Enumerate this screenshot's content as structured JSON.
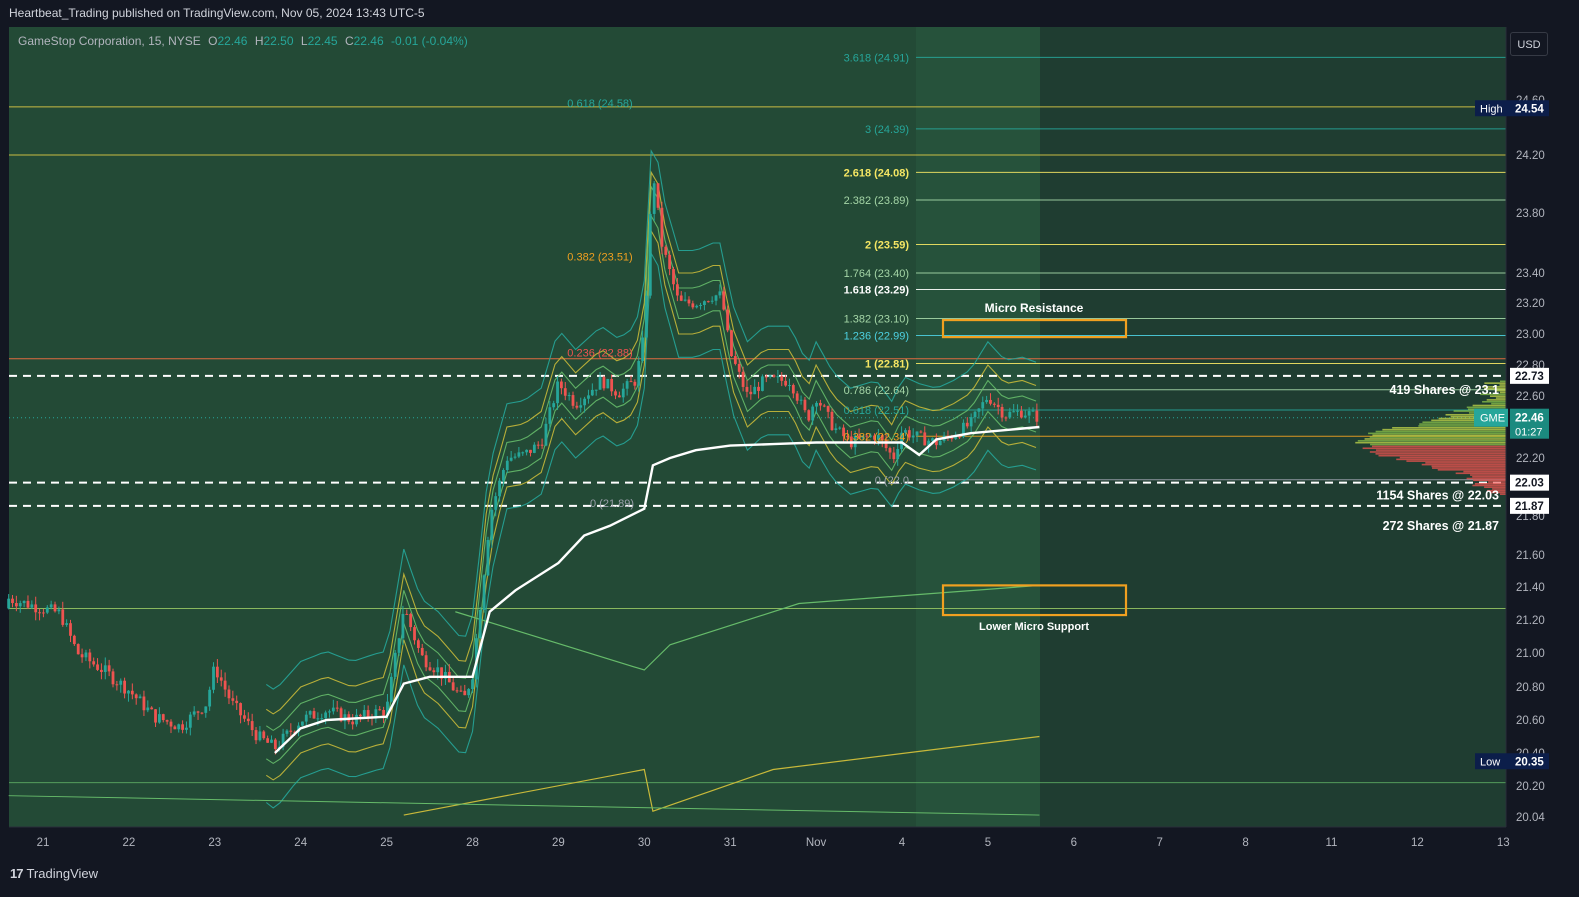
{
  "header": {
    "publish_line": "Heartbeat_Trading published on TradingView.com, Nov 05, 2024 13:43 UTC-5"
  },
  "symbol_legend": {
    "name": "GameStop Corporation, 15, NYSE",
    "o_label": "O",
    "o_value": "22.46",
    "h_label": "H",
    "h_value": "22.50",
    "l_label": "L",
    "l_value": "22.45",
    "c_label": "C",
    "c_value": "22.46",
    "change": "-0.01 (-0.04%)"
  },
  "currency_button": "USD",
  "footer": {
    "brand": "TradingView",
    "brand_mark": "17"
  },
  "colors": {
    "bg": "#131722",
    "panel_green": "#234a36",
    "future_zone": "#1f3d31",
    "up": "#26a69a",
    "down": "#ef5350",
    "yellow": "#e6d046",
    "orange": "#f0a020",
    "white": "#ffffff"
  },
  "chart_data": {
    "type": "candlestick",
    "symbol": "GME",
    "interval": "15",
    "ylim": [
      20.0,
      24.7
    ],
    "y_ticks": [
      "24.60",
      "24.20",
      "23.80",
      "23.40",
      "23.20",
      "23.00",
      "22.80",
      "22.60",
      "22.20",
      "21.80",
      "21.60",
      "21.40",
      "21.20",
      "21.00",
      "20.80",
      "20.60",
      "20.40",
      "20.20",
      "20.04"
    ],
    "x_ticks": [
      "21",
      "22",
      "23",
      "24",
      "25",
      "28",
      "29",
      "30",
      "31",
      "Nov",
      "4",
      "5",
      "6",
      "7",
      "8",
      "11",
      "12",
      "13"
    ],
    "close_path": [
      [
        0,
        21.27
      ],
      [
        0.2,
        21.24
      ],
      [
        0.4,
        21.0
      ],
      [
        0.7,
        20.9
      ],
      [
        1.0,
        20.78
      ],
      [
        1.3,
        20.62
      ],
      [
        1.6,
        20.56
      ],
      [
        1.9,
        20.7
      ],
      [
        2.0,
        20.92
      ],
      [
        2.2,
        20.7
      ],
      [
        2.5,
        20.5
      ],
      [
        2.7,
        20.43
      ],
      [
        3.0,
        20.6
      ],
      [
        3.3,
        20.66
      ],
      [
        3.6,
        20.6
      ],
      [
        3.9,
        20.65
      ],
      [
        4.0,
        20.66
      ],
      [
        4.2,
        21.28
      ],
      [
        4.4,
        20.98
      ],
      [
        4.6,
        20.9
      ],
      [
        4.9,
        20.72
      ],
      [
        5.0,
        20.88
      ],
      [
        5.2,
        21.8
      ],
      [
        5.4,
        22.2
      ],
      [
        5.6,
        22.22
      ],
      [
        5.8,
        22.3
      ],
      [
        6.0,
        22.68
      ],
      [
        6.2,
        22.55
      ],
      [
        6.5,
        22.7
      ],
      [
        6.7,
        22.62
      ],
      [
        6.9,
        22.7
      ],
      [
        7.0,
        23.0
      ],
      [
        7.1,
        24.1
      ],
      [
        7.2,
        23.6
      ],
      [
        7.4,
        23.2
      ],
      [
        7.6,
        23.2
      ],
      [
        7.8,
        23.25
      ],
      [
        7.9,
        23.25
      ],
      [
        8.0,
        22.88
      ],
      [
        8.2,
        22.6
      ],
      [
        8.4,
        22.7
      ],
      [
        8.7,
        22.7
      ],
      [
        8.9,
        22.45
      ],
      [
        9.0,
        22.6
      ],
      [
        9.2,
        22.4
      ],
      [
        9.4,
        22.3
      ],
      [
        9.7,
        22.35
      ],
      [
        9.9,
        22.2
      ],
      [
        10.0,
        22.38
      ],
      [
        10.2,
        22.33
      ],
      [
        10.4,
        22.3
      ],
      [
        10.6,
        22.35
      ],
      [
        10.8,
        22.42
      ],
      [
        11.0,
        22.6
      ],
      [
        11.2,
        22.48
      ],
      [
        11.4,
        22.5
      ],
      [
        11.6,
        22.46
      ]
    ],
    "series": [
      {
        "name": "VWAP (anchored)",
        "color": "#ffffff"
      },
      {
        "name": "Volume profile",
        "color": "#ef5350"
      }
    ],
    "horizontal_levels": [
      {
        "value": 24.54,
        "label": "High"
      },
      {
        "value": 20.35,
        "label": "Low"
      },
      {
        "value": 22.73,
        "label": "22.73",
        "style": "dashed"
      },
      {
        "value": 22.03,
        "label": "22.03",
        "style": "dashed"
      },
      {
        "value": 21.87,
        "label": "21.87",
        "style": "dashed"
      }
    ],
    "price_tags": [
      {
        "text": "High",
        "value": "24.54",
        "kind": "navy"
      },
      {
        "text": "Low",
        "value": "20.35",
        "kind": "navy"
      },
      {
        "text": "GME",
        "value": "22.46",
        "sub": "01:27",
        "kind": "teal"
      },
      {
        "text": "",
        "value": "22.73",
        "kind": "white"
      },
      {
        "text": "",
        "value": "22.03",
        "kind": "white"
      },
      {
        "text": "",
        "value": "21.87",
        "kind": "white"
      }
    ],
    "fib_left": [
      {
        "label": "0.618 (24.58)",
        "value": 24.58,
        "color": "#26a69a"
      },
      {
        "label": "0.382 (23.51)",
        "value": 23.51,
        "color": "#f0a020"
      },
      {
        "label": "0.236 (22.88)",
        "value": 22.88,
        "color": "#ef5350"
      },
      {
        "label": "0 (21.89)",
        "value": 21.89,
        "color": "#9ba0ab"
      }
    ],
    "fib_right": [
      {
        "label": "3.618 (24.91)",
        "value": 24.91,
        "color": "#26a69a"
      },
      {
        "label": "3 (24.39)",
        "value": 24.39,
        "color": "#26a69a"
      },
      {
        "label": "2.618 (24.08)",
        "value": 24.08,
        "color": "#f5e663"
      },
      {
        "label": "2.382 (23.89)",
        "value": 23.89,
        "color": "#a5d6a7"
      },
      {
        "label": "2 (23.59)",
        "value": 23.59,
        "color": "#f5e663"
      },
      {
        "label": "1.764 (23.40)",
        "value": 23.4,
        "color": "#a5d6a7"
      },
      {
        "label": "1.618 (23.29)",
        "value": 23.29,
        "color": "#ffffff"
      },
      {
        "label": "1.382 (23.10)",
        "value": 23.1,
        "color": "#a5d6a7"
      },
      {
        "label": "1.236 (22.99)",
        "value": 22.99,
        "color": "#4dd0e1"
      },
      {
        "label": "1 (22.81)",
        "value": 22.81,
        "color": "#f5e663"
      },
      {
        "label": "0.786 (22.64)",
        "value": 22.64,
        "color": "#a5d6a7"
      },
      {
        "label": "0.618 (22.51)",
        "value": 22.51,
        "color": "#26a69a"
      },
      {
        "label": "0.382 (22.34)",
        "value": 22.34,
        "color": "#f0a020"
      },
      {
        "label": "0 (22.0",
        "value": 22.05,
        "color": "#9ba0ab"
      }
    ],
    "annotations": [
      {
        "text": "Micro Resistance",
        "low": 22.98,
        "high": 23.09
      },
      {
        "text": "Lower Micro Support",
        "low": 21.23,
        "high": 21.41
      },
      {
        "text": "419 Shares @ 23.1",
        "value": 22.64
      },
      {
        "text": "1154 Shares @ 22.03",
        "value": 21.94
      },
      {
        "text": "272 Shares @ 21.87",
        "value": 21.75
      }
    ]
  }
}
